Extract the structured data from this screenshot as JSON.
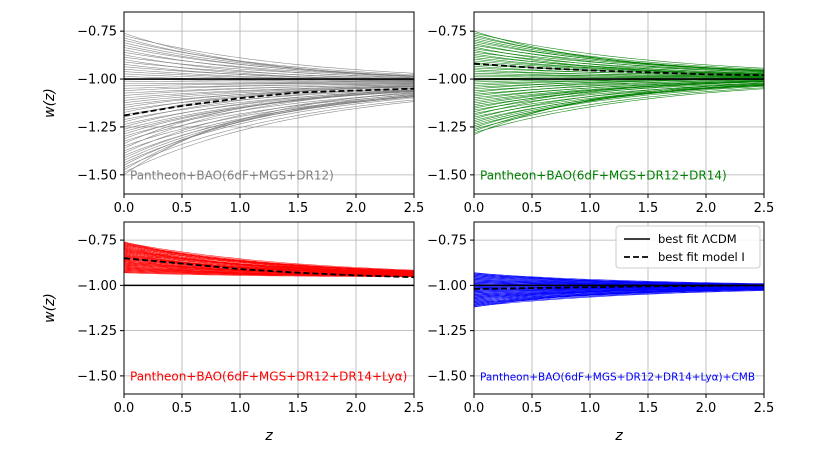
{
  "chart_data": [
    {
      "type": "line",
      "label": "Pantheon+BAO(6dF+MGS+DR12)",
      "label_color": "#808080",
      "sample_color": "#808080",
      "ylabel": "w(z)",
      "xlabel": "",
      "xlim": [
        0,
        2.5
      ],
      "ylim": [
        -1.6,
        -0.65
      ],
      "xticks": [
        "0.0",
        "0.5",
        "1.0",
        "1.5",
        "2.0",
        "2.5"
      ],
      "yticks": [
        "−0.75",
        "−1.00",
        "−1.25",
        "−1.50"
      ],
      "grid": true,
      "lcdm": {
        "name": "best fit ΛCDM",
        "x": [
          0,
          2.5
        ],
        "y": [
          -1.0,
          -1.0
        ]
      },
      "best_fit": {
        "name": "best fit model I",
        "x": [
          0,
          0.5,
          1.0,
          1.5,
          2.0,
          2.5
        ],
        "y": [
          -1.19,
          -1.14,
          -1.1,
          -1.07,
          -1.06,
          -1.05
        ]
      },
      "samples": {
        "count": 60,
        "w0_range": [
          -1.5,
          -0.76
        ],
        "w_inf": -1.02
      }
    },
    {
      "type": "line",
      "label": "Pantheon+BAO(6dF+MGS+DR12+DR14)",
      "label_color": "#008000",
      "sample_color": "#008000",
      "ylabel": "",
      "xlabel": "",
      "xlim": [
        0,
        2.5
      ],
      "ylim": [
        -1.6,
        -0.65
      ],
      "xticks": [
        "0.0",
        "0.5",
        "1.0",
        "1.5",
        "2.0",
        "2.5"
      ],
      "yticks": [
        "−0.75",
        "−1.00",
        "−1.25",
        "−1.50"
      ],
      "grid": true,
      "lcdm": {
        "name": "best fit ΛCDM",
        "x": [
          0,
          2.5
        ],
        "y": [
          -1.0,
          -1.0
        ]
      },
      "best_fit": {
        "name": "best fit model I",
        "x": [
          0,
          0.5,
          1.0,
          1.5,
          2.0,
          2.5
        ],
        "y": [
          -0.92,
          -0.94,
          -0.955,
          -0.965,
          -0.975,
          -0.98
        ]
      },
      "samples": {
        "count": 60,
        "w0_range": [
          -1.29,
          -0.75
        ],
        "w_inf": -0.99
      }
    },
    {
      "type": "line",
      "label": "Pantheon+BAO(6dF+MGS+DR12+DR14+Lyα)",
      "label_color": "#ff0000",
      "sample_color": "#ff0000",
      "ylabel": "w(z)",
      "xlabel": "z",
      "xlim": [
        0,
        2.5
      ],
      "ylim": [
        -1.6,
        -0.65
      ],
      "xticks": [
        "0.0",
        "0.5",
        "1.0",
        "1.5",
        "2.0",
        "2.5"
      ],
      "yticks": [
        "−0.75",
        "−1.00",
        "−1.25",
        "−1.50"
      ],
      "grid": true,
      "lcdm": {
        "name": "best fit ΛCDM",
        "x": [
          0,
          2.5
        ],
        "y": [
          -1.0,
          -1.0
        ]
      },
      "best_fit": {
        "name": "best fit model I",
        "x": [
          0,
          0.5,
          1.0,
          1.5,
          2.0,
          2.5
        ],
        "y": [
          -0.85,
          -0.88,
          -0.91,
          -0.93,
          -0.945,
          -0.955
        ]
      },
      "samples": {
        "count": 60,
        "w0_range": [
          -0.93,
          -0.76
        ],
        "w_inf": -0.955
      }
    },
    {
      "type": "line",
      "label": "Pantheon+BAO(6dF+MGS+DR12+DR14+Lyα)+CMB",
      "label_color": "#0000ff",
      "sample_color": "#0000ff",
      "ylabel": "",
      "xlabel": "z",
      "xlim": [
        0,
        2.5
      ],
      "ylim": [
        -1.6,
        -0.65
      ],
      "xticks": [
        "0.0",
        "0.5",
        "1.0",
        "1.5",
        "2.0",
        "2.5"
      ],
      "yticks": [
        "−0.75",
        "−1.00",
        "−1.25",
        "−1.50"
      ],
      "grid": true,
      "lcdm": {
        "name": "best fit ΛCDM",
        "x": [
          0,
          2.5
        ],
        "y": [
          -1.0,
          -1.0
        ]
      },
      "best_fit": {
        "name": "best fit model I",
        "x": [
          0,
          0.5,
          1.0,
          1.5,
          2.0,
          2.5
        ],
        "y": [
          -1.02,
          -1.015,
          -1.01,
          -1.005,
          -1.003,
          -1.0
        ]
      },
      "samples": {
        "count": 60,
        "w0_range": [
          -1.12,
          -0.93
        ],
        "w_inf": -1.005
      },
      "legend": {
        "placement": "upper-right",
        "entries": [
          "best fit ΛCDM",
          "best fit model I"
        ]
      }
    }
  ]
}
